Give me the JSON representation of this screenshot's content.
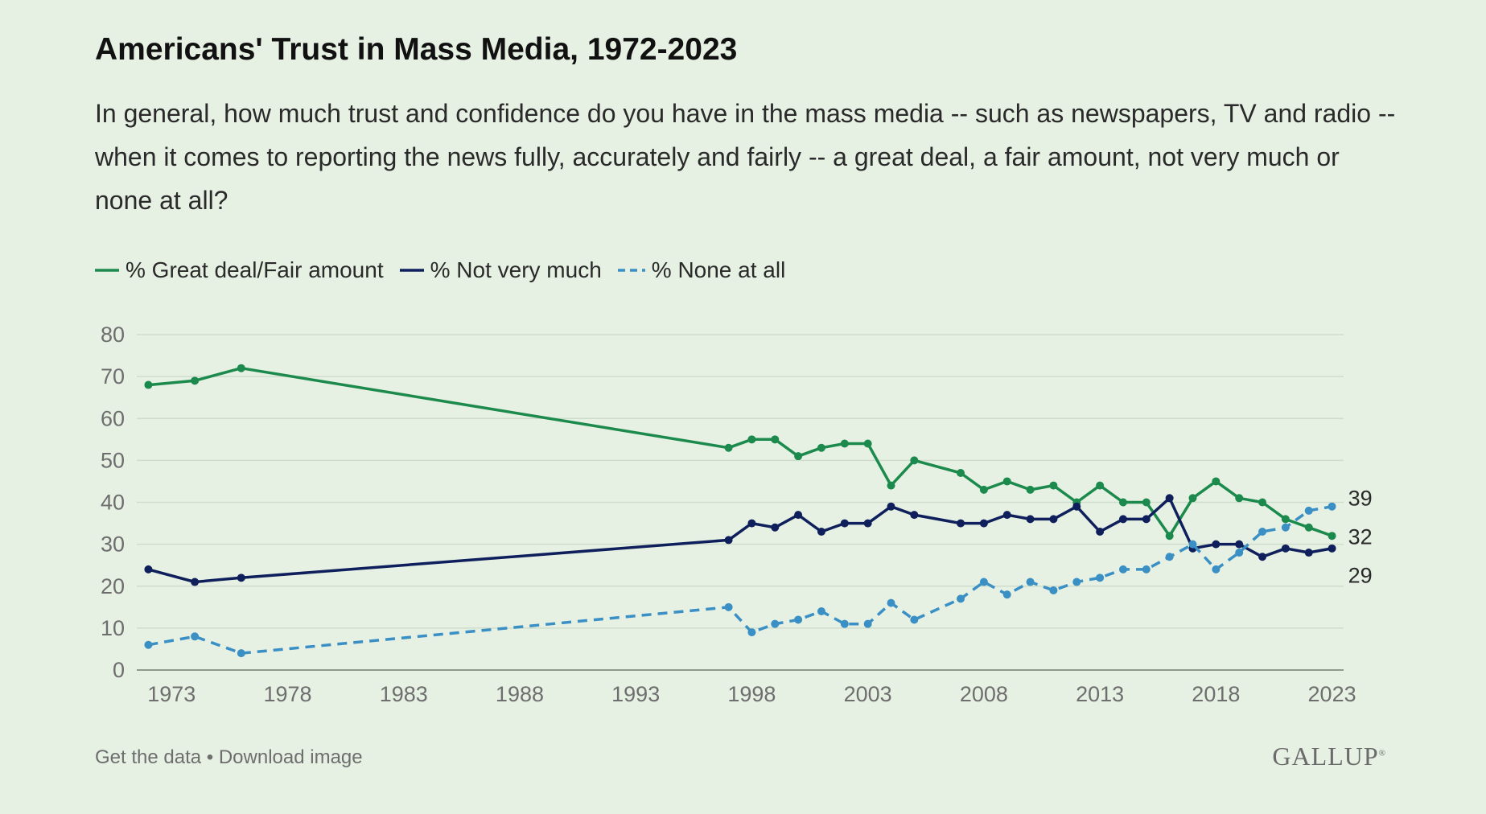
{
  "header": {
    "title": "Americans' Trust in Mass Media, 1972-2023",
    "subtitle": "In general, how much trust and confidence do you have in the mass media -- such as newspapers, TV and radio -- when it comes to reporting the news fully, accurately and fairly -- a great deal, a fair amount, not very much or none at all?"
  },
  "footer": {
    "get_data": "Get the data",
    "separator": "•",
    "download": "Download image",
    "brand": "GALLUP",
    "brand_mark": "®"
  },
  "colors": {
    "great_fair": "#1b8a4c",
    "not_very": "#0f1f5c",
    "none": "#3a8fc4",
    "grid": "#cfdccc",
    "axis_text": "#6e6e6e"
  },
  "chart_data": {
    "type": "line",
    "title": "Americans' Trust in Mass Media, 1972-2023",
    "xlabel": "",
    "ylabel": "",
    "ylim": [
      0,
      80
    ],
    "xlim": [
      1971.5,
      2023.5
    ],
    "yticks": [
      "0",
      "10",
      "20",
      "30",
      "40",
      "50",
      "60",
      "70",
      "80"
    ],
    "xticks": [
      "1973",
      "1978",
      "1983",
      "1988",
      "1993",
      "1998",
      "2003",
      "2008",
      "2013",
      "2018",
      "2023"
    ],
    "grid": true,
    "legend_position": "top-left",
    "x": [
      1972,
      1974,
      1976,
      1997,
      1998,
      1999,
      2000,
      2001,
      2002,
      2003,
      2004,
      2005,
      2007,
      2008,
      2009,
      2010,
      2011,
      2012,
      2013,
      2014,
      2015,
      2016,
      2017,
      2018,
      2019,
      2020,
      2021,
      2022,
      2023
    ],
    "series": [
      {
        "name": "% Great deal/Fair amount",
        "style": "solid",
        "values": [
          68,
          69,
          72,
          53,
          55,
          55,
          51,
          53,
          54,
          54,
          44,
          50,
          47,
          43,
          45,
          43,
          44,
          40,
          44,
          40,
          40,
          32,
          41,
          45,
          41,
          40,
          36,
          34,
          32
        ],
        "end_label": "32"
      },
      {
        "name": "% Not very much",
        "style": "solid",
        "values": [
          24,
          21,
          22,
          31,
          35,
          34,
          37,
          33,
          35,
          35,
          39,
          37,
          35,
          35,
          37,
          36,
          36,
          39,
          33,
          36,
          36,
          41,
          29,
          30,
          30,
          27,
          29,
          28,
          29
        ],
        "end_label": "29"
      },
      {
        "name": "% None at all",
        "style": "dashed",
        "values": [
          6,
          8,
          4,
          15,
          9,
          11,
          12,
          14,
          11,
          11,
          16,
          12,
          17,
          21,
          18,
          21,
          19,
          21,
          22,
          24,
          24,
          27,
          30,
          24,
          28,
          33,
          34,
          38,
          39
        ],
        "end_label": "39"
      }
    ]
  }
}
